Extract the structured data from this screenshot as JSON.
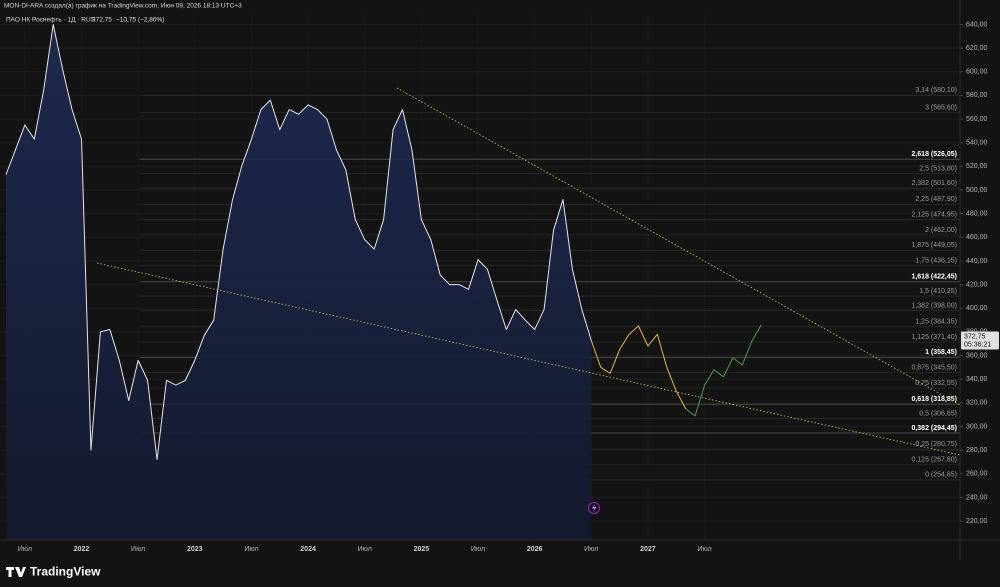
{
  "header": {
    "attribution": "MON-DI-ARA создал(а) график на TradingView.com, Июн 09, 2026 18:13 UTC+3",
    "symbol": "ПАО НК Роснефть · 1Д · RUS",
    "price": "372,75",
    "change": "−10,75 (−2,80%)"
  },
  "last_price_tag": {
    "price": "372,75",
    "countdown": "05:36:21"
  },
  "logo": "TradingView",
  "chart_data": {
    "type": "line",
    "categories": [
      null,
      null,
      "Июл",
      null,
      null,
      null,
      null,
      null,
      "2022",
      null,
      null,
      null,
      null,
      null,
      "Июл",
      null,
      null,
      null,
      null,
      null,
      "2023",
      null,
      null,
      null,
      null,
      null,
      "Июл",
      null,
      null,
      null,
      null,
      null,
      "2024",
      null,
      null,
      null,
      null,
      null,
      "Июл",
      null,
      null,
      null,
      null,
      null,
      "2025",
      null,
      null,
      null,
      null,
      null,
      "Июл",
      null,
      null,
      null,
      null,
      null,
      "2026",
      null,
      null,
      null,
      null,
      null,
      "Июл",
      null,
      null,
      null,
      null,
      null,
      "2027",
      null,
      null,
      null,
      null,
      null,
      "Июл",
      null,
      null,
      null,
      null,
      null,
      null,
      null,
      null,
      null,
      null,
      null,
      null,
      null,
      null,
      null,
      null,
      null,
      null,
      null,
      null,
      null,
      null,
      null,
      null,
      null,
      null
    ],
    "series": [
      {
        "color": "#e6e6e6",
        "area": true,
        "values": [
          513,
          534,
          555,
          543,
          585,
          640,
          602,
          568,
          543,
          280,
          380,
          382,
          356,
          322,
          356,
          339,
          272,
          339,
          335,
          339,
          356,
          377,
          390,
          450,
          492,
          521,
          543,
          568,
          576,
          551,
          568,
          564,
          572,
          568,
          560,
          534,
          517,
          475,
          458,
          450,
          475,
          551,
          568,
          534,
          475,
          458,
          428,
          420,
          420,
          416,
          441,
          433,
          407,
          382,
          399,
          390,
          382,
          399,
          466,
          492,
          433,
          399,
          372.75,
          null,
          null,
          null,
          null,
          null,
          null,
          null,
          null,
          null,
          null,
          null,
          null,
          null,
          null,
          null,
          null,
          null,
          null,
          null,
          null,
          null,
          null,
          null,
          null,
          null,
          null,
          null,
          null,
          null,
          null,
          null,
          null,
          null,
          null,
          null,
          null,
          null,
          null
        ]
      },
      {
        "color": "#e2b93b",
        "area": false,
        "values": [
          null,
          null,
          null,
          null,
          null,
          null,
          null,
          null,
          null,
          null,
          null,
          null,
          null,
          null,
          null,
          null,
          null,
          null,
          null,
          null,
          null,
          null,
          null,
          null,
          null,
          null,
          null,
          null,
          null,
          null,
          null,
          null,
          null,
          null,
          null,
          null,
          null,
          null,
          null,
          null,
          null,
          null,
          null,
          null,
          null,
          null,
          null,
          null,
          null,
          null,
          null,
          null,
          null,
          null,
          null,
          null,
          null,
          null,
          null,
          null,
          null,
          null,
          372.75,
          350,
          345,
          365,
          378,
          385,
          368,
          378,
          350,
          330,
          315,
          null,
          null,
          null,
          null,
          null,
          null,
          null,
          null,
          null,
          null,
          null,
          null,
          null,
          null,
          null,
          null,
          null,
          null,
          null,
          null,
          null,
          null,
          null,
          null,
          null,
          null,
          null,
          null
        ]
      },
      {
        "color": "#43a047",
        "area": false,
        "values": [
          null,
          null,
          null,
          null,
          null,
          null,
          null,
          null,
          null,
          null,
          null,
          null,
          null,
          null,
          null,
          null,
          null,
          null,
          null,
          null,
          null,
          null,
          null,
          null,
          null,
          null,
          null,
          null,
          null,
          null,
          null,
          null,
          null,
          null,
          null,
          null,
          null,
          null,
          null,
          null,
          null,
          null,
          null,
          null,
          null,
          null,
          null,
          null,
          null,
          null,
          null,
          null,
          null,
          null,
          null,
          null,
          null,
          null,
          null,
          null,
          null,
          null,
          null,
          null,
          null,
          null,
          null,
          null,
          null,
          null,
          null,
          null,
          315,
          309,
          335,
          348,
          342,
          358,
          352,
          372,
          386,
          null,
          null,
          null,
          null,
          null,
          null,
          null,
          null,
          null,
          null,
          null,
          null,
          null,
          null,
          null,
          null,
          null,
          null,
          null,
          null
        ]
      }
    ],
    "ylim": [
      204,
      648
    ],
    "yticks": [
      {
        "value": 220,
        "label": "220,00"
      },
      {
        "value": 240,
        "label": "240,00"
      },
      {
        "value": 260,
        "label": "260,00"
      },
      {
        "value": 280,
        "label": "280,00"
      },
      {
        "value": 300,
        "label": "300,00"
      },
      {
        "value": 320,
        "label": "320,00"
      },
      {
        "value": 340,
        "label": "340,00"
      },
      {
        "value": 360,
        "label": "360,00"
      },
      {
        "value": 380,
        "label": "380,00"
      },
      {
        "value": 400,
        "label": "400,00"
      },
      {
        "value": 420,
        "label": "420,00"
      },
      {
        "value": 440,
        "label": "440,00"
      },
      {
        "value": 460,
        "label": "460,00"
      },
      {
        "value": 480,
        "label": "480,00"
      },
      {
        "value": 500,
        "label": "500,00"
      },
      {
        "value": 520,
        "label": "520,00"
      },
      {
        "value": 540,
        "label": "540,00"
      },
      {
        "value": 560,
        "label": "560,00"
      },
      {
        "value": 580,
        "label": "580,00"
      },
      {
        "value": 600,
        "label": "600,00"
      },
      {
        "value": 620,
        "label": "620,00"
      },
      {
        "value": 640,
        "label": "640,00"
      }
    ],
    "grid": true,
    "fib_levels": [
      {
        "value": 580.1,
        "label": "3,14 (580,10)",
        "bold": false
      },
      {
        "value": 565.6,
        "label": "3 (565,60)",
        "bold": false
      },
      {
        "value": 526.05,
        "label": "2,618 (526,05)",
        "bold": true
      },
      {
        "value": 513.8,
        "label": "2,5 (513,80)",
        "bold": false
      },
      {
        "value": 501.6,
        "label": "2,382 (501,60)",
        "bold": false
      },
      {
        "value": 487.9,
        "label": "2,25 (487,90)",
        "bold": false
      },
      {
        "value": 474.95,
        "label": "2,125 (474,95)",
        "bold": false
      },
      {
        "value": 462.0,
        "label": "2 (462,00)",
        "bold": false
      },
      {
        "value": 449.05,
        "label": "1,875 (449,05)",
        "bold": false
      },
      {
        "value": 436.15,
        "label": "1,75 (436,15)",
        "bold": false
      },
      {
        "value": 422.45,
        "label": "1,618 (422,45)",
        "bold": true
      },
      {
        "value": 410.25,
        "label": "1,5 (410,25)",
        "bold": false
      },
      {
        "value": 398.0,
        "label": "1,382 (398,00)",
        "bold": false
      },
      {
        "value": 384.35,
        "label": "1,25 (384,35)",
        "bold": false
      },
      {
        "value": 371.4,
        "label": "1,125 (371,40)",
        "bold": false
      },
      {
        "value": 358.45,
        "label": "1 (358,45)",
        "bold": true
      },
      {
        "value": 345.5,
        "label": "0,875 (345,50)",
        "bold": false
      },
      {
        "value": 332.55,
        "label": "0,75 (332,55)",
        "bold": false
      },
      {
        "value": 318.85,
        "label": "0,618 (318,85)",
        "bold": true
      },
      {
        "value": 306.65,
        "label": "0,5 (306,65)",
        "bold": false
      },
      {
        "value": 294.45,
        "label": "0,382 (294,45)",
        "bold": true
      },
      {
        "value": 280.75,
        "label": "0,25 (280,75)",
        "bold": false
      },
      {
        "value": 267.8,
        "label": "0,125 (267,80)",
        "bold": false
      },
      {
        "value": 254.85,
        "label": "0 (254,85)",
        "bold": false
      }
    ]
  }
}
